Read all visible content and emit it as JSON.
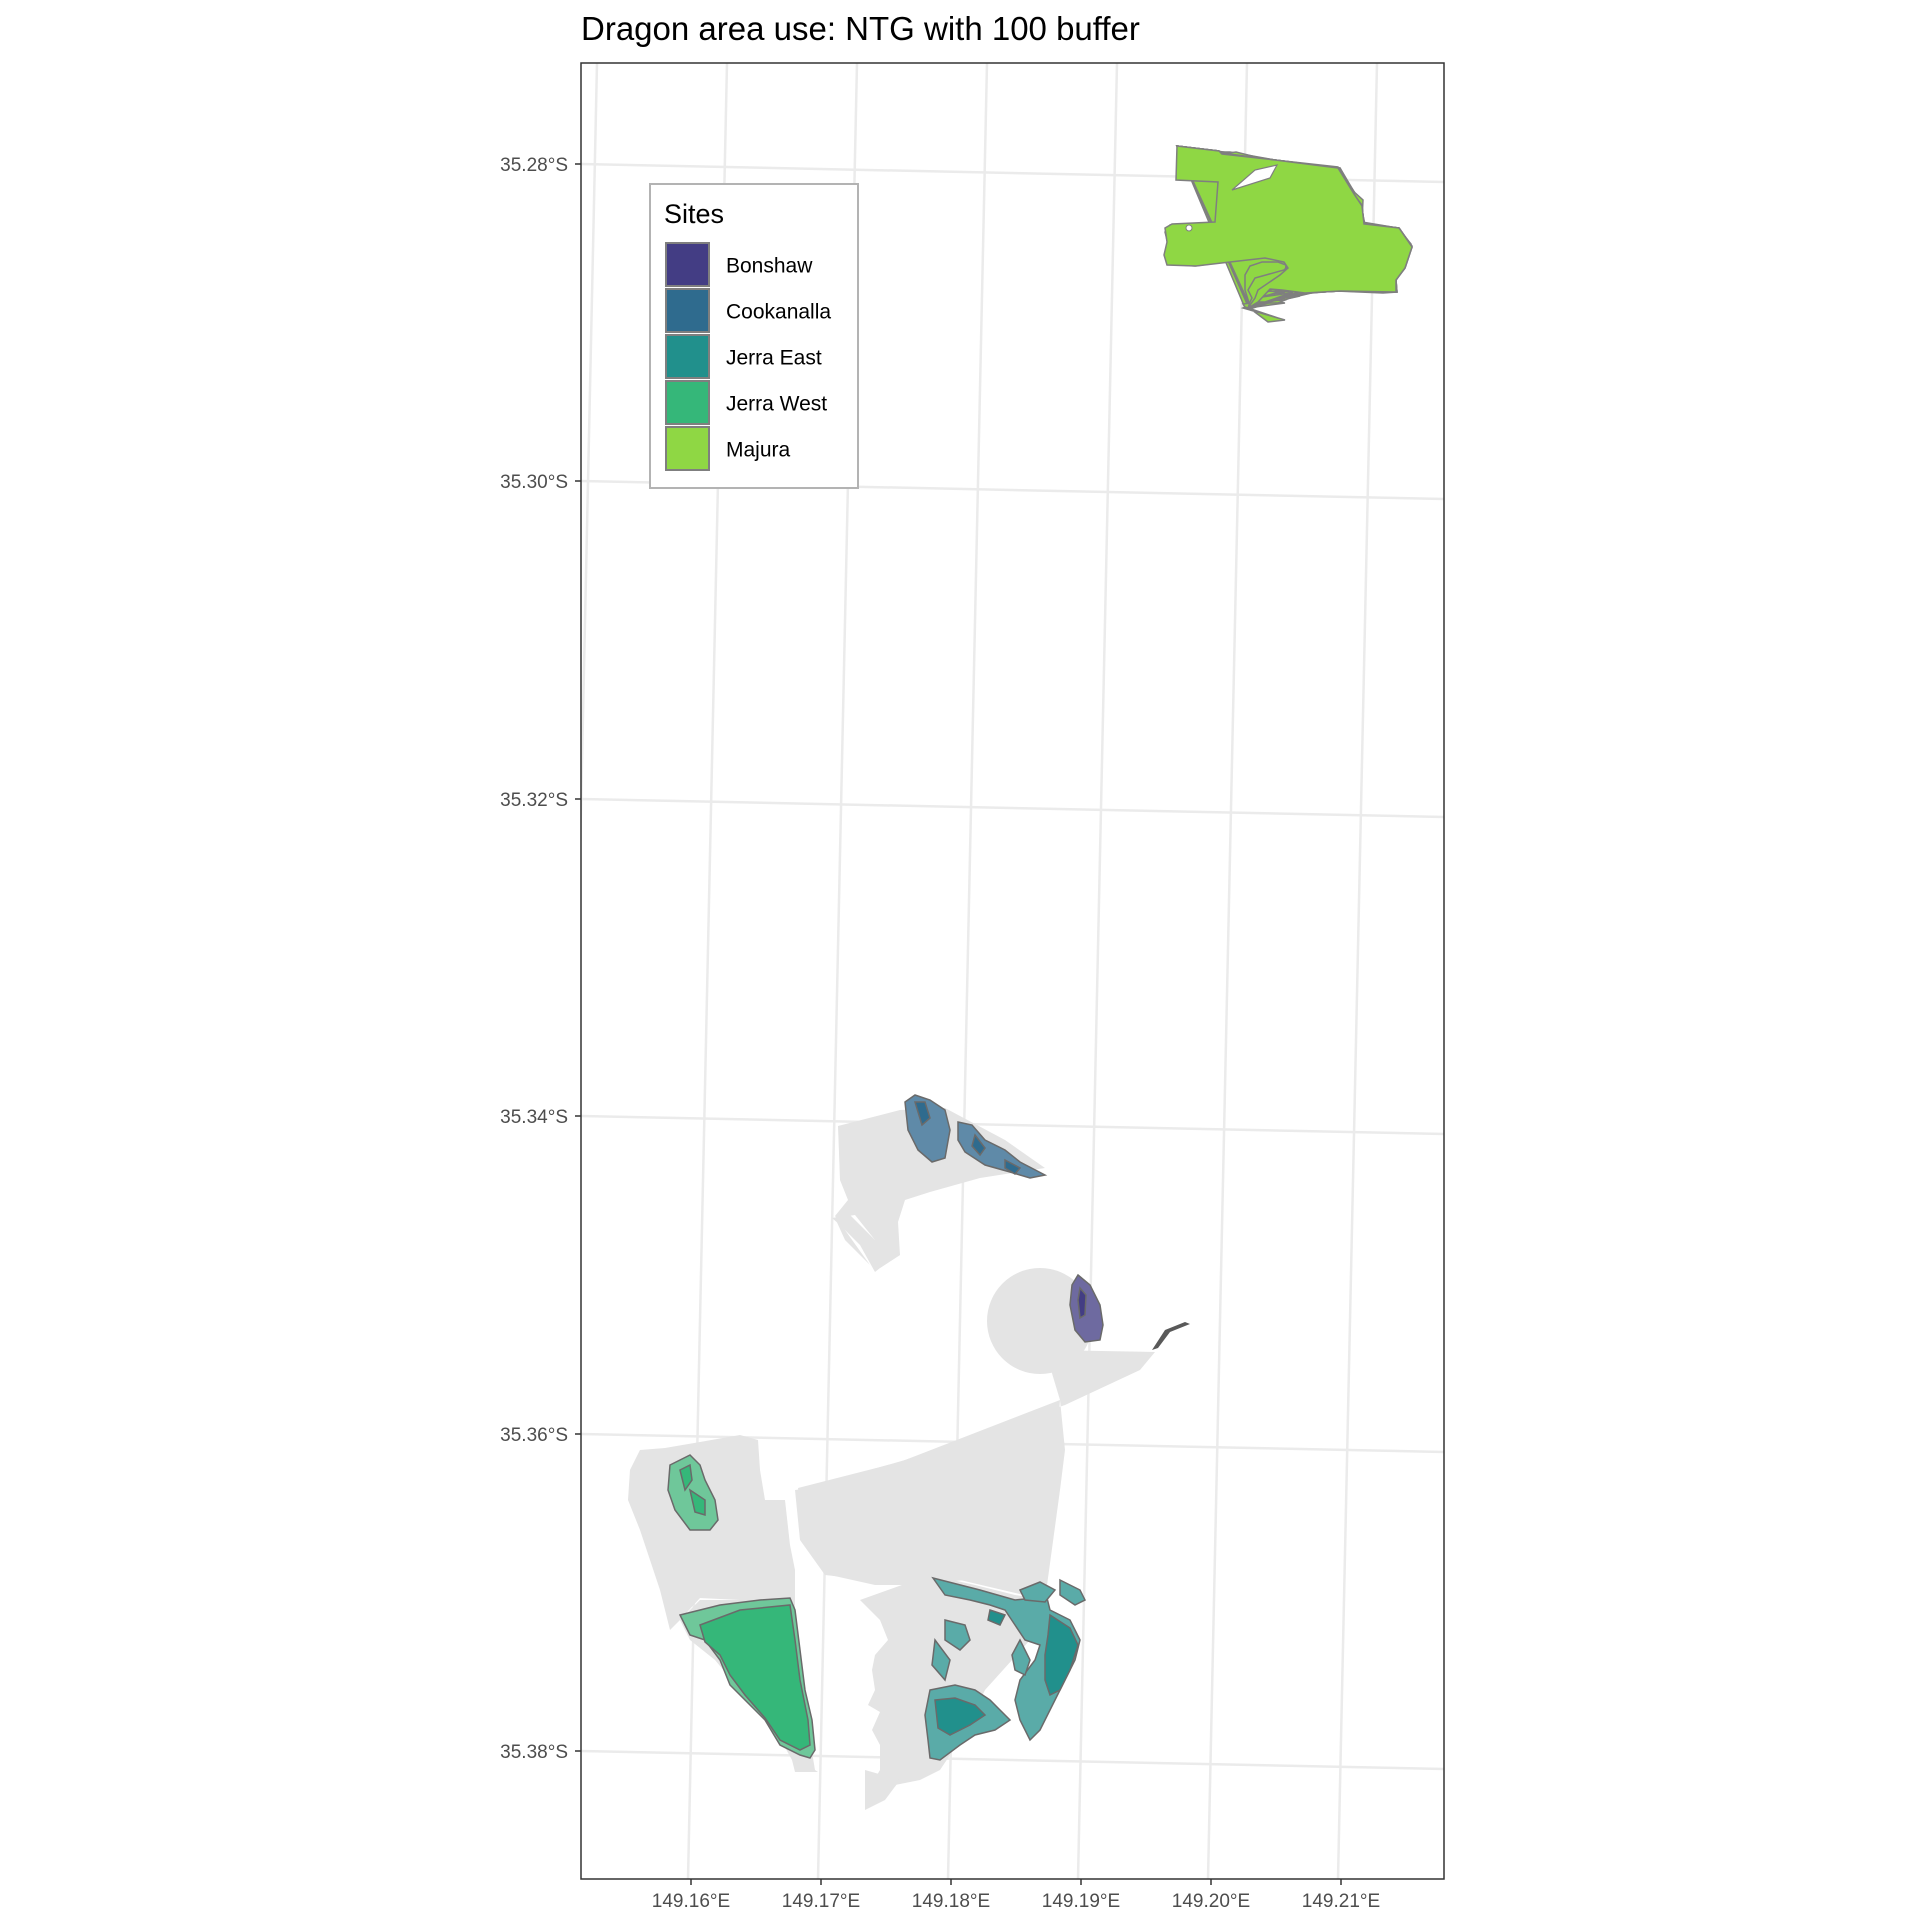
{
  "title": "Dragon area use: NTG with 100 buffer",
  "axes": {
    "y_ticks": [
      "35.28°S",
      "35.30°S",
      "35.32°S",
      "35.34°S",
      "35.36°S",
      "35.38°S"
    ],
    "x_ticks": [
      "149.16°E",
      "149.17°E",
      "149.18°E",
      "149.19°E",
      "149.20°E",
      "149.21°E"
    ]
  },
  "legend": {
    "title": "Sites",
    "items": [
      {
        "label": "Bonshaw",
        "color": "#433d84"
      },
      {
        "label": "Cookanalla",
        "color": "#2f6b8e"
      },
      {
        "label": "Jerra East",
        "color": "#21908c"
      },
      {
        "label": "Jerra West",
        "color": "#35b779"
      },
      {
        "label": "Majura",
        "color": "#8fd744"
      }
    ]
  },
  "colors": {
    "panel_border": "#333333",
    "grid": "#ebebeb",
    "background_area": "#e4e4e4",
    "outline": "#7f7f7f"
  }
}
